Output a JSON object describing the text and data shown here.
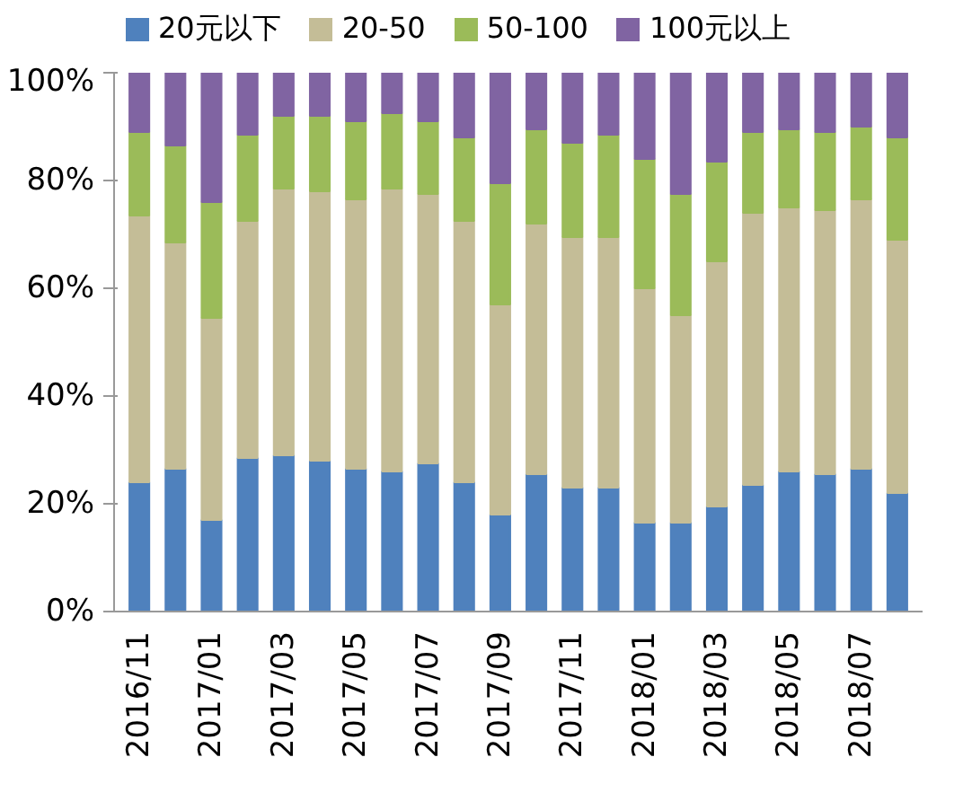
{
  "chart_data": {
    "type": "bar",
    "stacked": true,
    "categories": [
      "2016/11",
      null,
      "2017/01",
      null,
      "2017/03",
      null,
      "2017/05",
      null,
      "2017/07",
      null,
      "2017/09",
      null,
      "2017/11",
      null,
      "2018/01",
      null,
      "2018/03",
      null,
      "2018/05",
      null,
      "2018/07",
      null
    ],
    "series": [
      {
        "name": "20元以下",
        "color": "#4f81bd",
        "values": [
          24,
          26.5,
          17,
          28.5,
          29,
          28,
          26.5,
          26,
          27.5,
          24,
          18,
          25.5,
          23,
          23,
          16.5,
          16.5,
          19.5,
          23.5,
          26,
          25.5,
          26.5,
          22
        ]
      },
      {
        "name": "20-50",
        "color": "#c4bd97",
        "values": [
          49.5,
          42,
          37.5,
          44,
          49.5,
          50,
          50,
          52.5,
          50,
          48.5,
          39,
          46.5,
          46.5,
          46.5,
          43.5,
          38.5,
          45.5,
          50.5,
          49,
          49,
          50,
          47
        ]
      },
      {
        "name": "50-100",
        "color": "#9bbb59",
        "values": [
          15.5,
          18,
          21.5,
          16,
          13.5,
          14,
          14.5,
          14,
          13.5,
          15.5,
          22.5,
          17.5,
          17.5,
          19,
          24,
          22.5,
          18.5,
          15,
          14.5,
          14.5,
          13.5,
          19
        ]
      },
      {
        "name": "100元以上",
        "color": "#8064a2",
        "values": [
          11,
          13.5,
          24,
          11.5,
          8,
          8,
          9,
          7.5,
          9,
          12,
          20.5,
          10.5,
          13,
          11.5,
          16,
          22.5,
          16.5,
          11,
          10.5,
          11,
          10,
          12
        ]
      }
    ],
    "ylim": [
      0,
      100
    ],
    "yticks": [
      {
        "value": 0,
        "label": "0%"
      },
      {
        "value": 20,
        "label": "20%"
      },
      {
        "value": 40,
        "label": "40%"
      },
      {
        "value": 60,
        "label": "60%"
      },
      {
        "value": 80,
        "label": "80%"
      },
      {
        "value": 100,
        "label": "100%"
      }
    ],
    "legend": "top",
    "grid": false
  }
}
